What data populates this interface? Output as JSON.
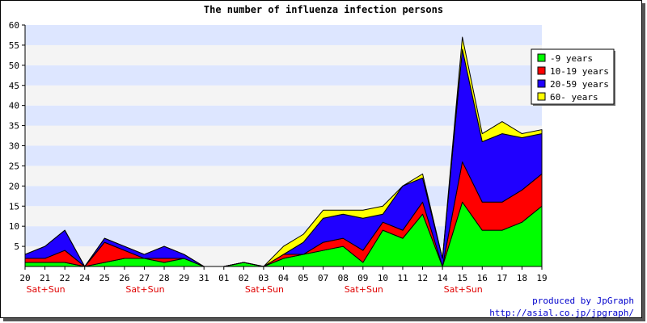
{
  "chart_data": {
    "type": "area",
    "stacked": true,
    "title": "The number of influenza infection persons",
    "xlabel": "",
    "ylabel": "",
    "ylim": [
      0,
      60
    ],
    "yticks": [
      5,
      10,
      15,
      20,
      25,
      30,
      35,
      40,
      45,
      50,
      55,
      60
    ],
    "grid": "horizontal alternating bands",
    "legend_position": "top-right",
    "categories": [
      "20",
      "21",
      "22",
      "24",
      "25",
      "26",
      "27",
      "28",
      "29",
      "31",
      "01",
      "02",
      "03",
      "04",
      "05",
      "07",
      "08",
      "09",
      "10",
      "11",
      "12",
      "14",
      "15",
      "16",
      "17",
      "18",
      "19"
    ],
    "weekend_label": "Sat+Sun",
    "weekend_under": [
      "21",
      "27",
      "03",
      "09",
      "15"
    ],
    "series": [
      {
        "name": "-9 years",
        "color": "#00ff00",
        "values": [
          1,
          1,
          1,
          0,
          1,
          2,
          2,
          1,
          2,
          0,
          0,
          1,
          0,
          2,
          3,
          4,
          5,
          1,
          9,
          7,
          13,
          0,
          16,
          9,
          9,
          11,
          15
        ]
      },
      {
        "name": "10-19 years",
        "color": "#ff0000",
        "values": [
          1,
          1,
          3,
          0,
          5,
          2,
          0,
          1,
          0,
          0,
          0,
          0,
          0,
          1,
          0,
          2,
          2,
          3,
          2,
          2,
          3,
          0,
          10,
          7,
          7,
          8,
          8
        ]
      },
      {
        "name": "20-59 years",
        "color": "#2000ff",
        "values": [
          1,
          3,
          5,
          0,
          1,
          1,
          1,
          3,
          1,
          0,
          0,
          0,
          0,
          0,
          3,
          6,
          6,
          8,
          2,
          11,
          6,
          2,
          28,
          15,
          17,
          13,
          10
        ]
      },
      {
        "name": "60- years",
        "color": "#ffff00",
        "values": [
          0,
          0,
          0,
          0,
          0,
          0,
          0,
          0,
          0,
          0,
          0,
          0,
          0,
          2,
          2,
          2,
          1,
          2,
          2,
          0,
          1,
          0,
          3,
          2,
          3,
          1,
          1
        ]
      }
    ]
  },
  "footer": {
    "credit_line1": "produced by JpGraph",
    "credit_line2": "http://asial.co.jp/jpgraph/"
  }
}
